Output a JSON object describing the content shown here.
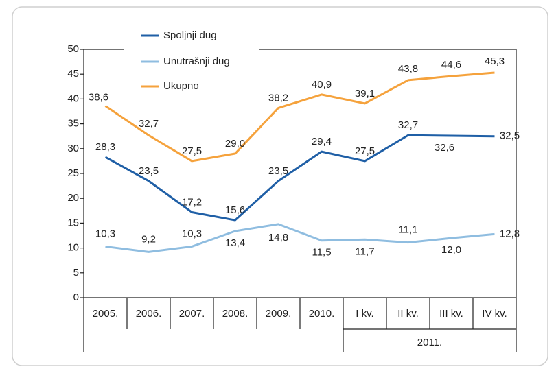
{
  "chart_data": {
    "type": "line",
    "categories": [
      "2005.",
      "2006.",
      "2007.",
      "2008.",
      "2009.",
      "2010.",
      "I kv.",
      "II kv.",
      "III kv.",
      "IV kv."
    ],
    "group_label": "2011.",
    "ylim": [
      0,
      50
    ],
    "yticks": [
      0,
      5,
      10,
      15,
      20,
      25,
      30,
      35,
      40,
      45,
      50
    ],
    "series": [
      {
        "name": "Spoljnji dug",
        "color": "#1f5fa6",
        "values": [
          28.3,
          23.5,
          17.2,
          15.6,
          23.5,
          29.4,
          27.5,
          32.7,
          32.6,
          32.5
        ],
        "value_labels": [
          "28,3",
          "23,5",
          "17,2",
          "15,6",
          "23,5",
          "29,4",
          "27,5",
          "32,7",
          "32,6",
          "32,5"
        ]
      },
      {
        "name": "Unutrašnji dug",
        "color": "#8fbde0",
        "values": [
          10.3,
          9.2,
          10.3,
          13.4,
          14.8,
          11.5,
          11.7,
          11.1,
          12.0,
          12.8
        ],
        "value_labels": [
          "10,3",
          "9,2",
          "10,3",
          "13,4",
          "14,8",
          "11,5",
          "11,7",
          "11,1",
          "12,0",
          "12,8"
        ]
      },
      {
        "name": "Ukupno",
        "color": "#f5a23c",
        "values": [
          38.6,
          32.7,
          27.5,
          29.0,
          38.2,
          40.9,
          39.1,
          43.8,
          44.6,
          45.3
        ],
        "value_labels": [
          "38,6",
          "32,7",
          "27,5",
          "29,0",
          "38,2",
          "40,9",
          "39,1",
          "43,8",
          "44,6",
          "45,3"
        ]
      }
    ]
  }
}
